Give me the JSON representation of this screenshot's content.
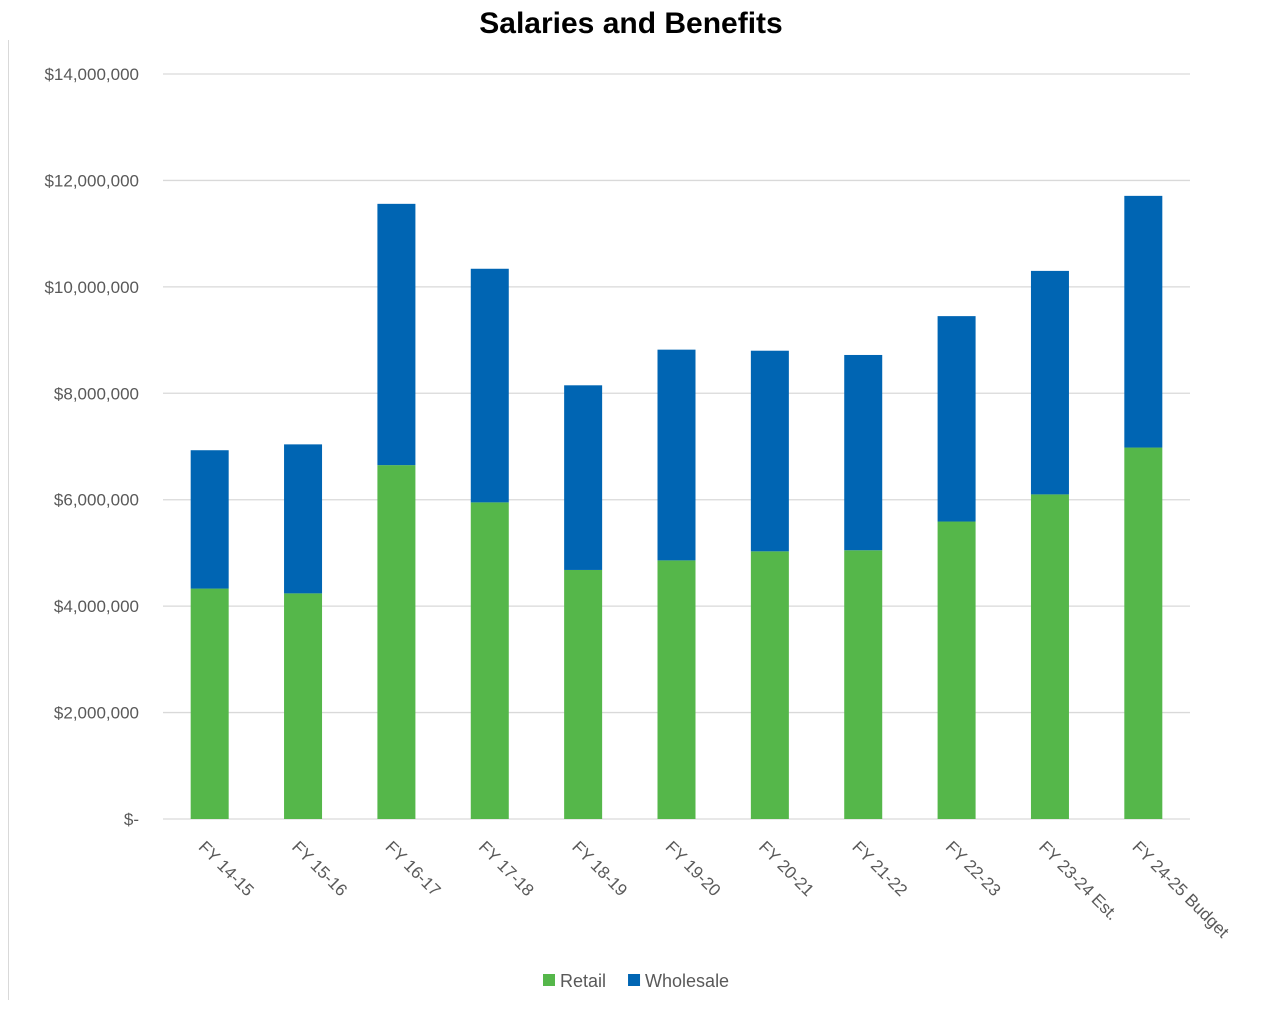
{
  "chart_data": {
    "type": "bar",
    "stacked": true,
    "title": "Salaries and Benefits",
    "xlabel": "",
    "ylabel": "",
    "categories": [
      "FY 14-15",
      "FY 15-16",
      "FY 16-17",
      "FY 17-18",
      "FY 18-19",
      "FY 19-20",
      "FY 20-21",
      "FY 21-22",
      "FY 22-23",
      "FY 23-24 Est.",
      "FY 24-25 Budget"
    ],
    "series": [
      {
        "name": "Retail",
        "color": "#55b74a",
        "values": [
          4330000,
          4240000,
          6650000,
          5950000,
          4680000,
          4860000,
          5030000,
          5050000,
          5590000,
          6100000,
          6980000
        ]
      },
      {
        "name": "Wholesale",
        "color": "#0065b3",
        "values": [
          2600000,
          2800000,
          4910000,
          4390000,
          3470000,
          3960000,
          3770000,
          3670000,
          3860000,
          4200000,
          4730000
        ]
      }
    ],
    "ylim": [
      0,
      14000000
    ],
    "yticks": [
      {
        "value": 0,
        "label": "$-"
      },
      {
        "value": 2000000,
        "label": "$2,000,000"
      },
      {
        "value": 4000000,
        "label": "$4,000,000"
      },
      {
        "value": 6000000,
        "label": "$6,000,000"
      },
      {
        "value": 8000000,
        "label": "$8,000,000"
      },
      {
        "value": 10000000,
        "label": "$10,000,000"
      },
      {
        "value": 12000000,
        "label": "$12,000,000"
      },
      {
        "value": 14000000,
        "label": "$14,000,000"
      }
    ],
    "grid": true,
    "gridColor": "#d9d9d9",
    "legend": "bottom-center"
  }
}
